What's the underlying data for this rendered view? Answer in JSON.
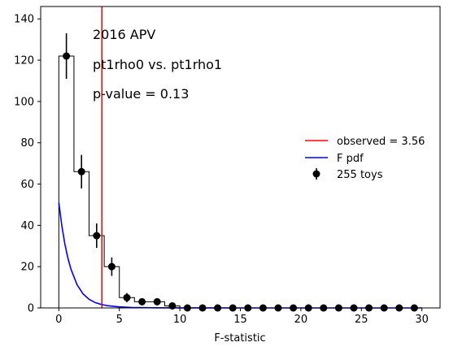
{
  "chart_data": {
    "type": "histogram",
    "xlabel": "F-statistic",
    "ylabel": "",
    "xlim": [
      -1.5,
      31.5
    ],
    "ylim": [
      0,
      146
    ],
    "xticks": [
      0,
      5,
      10,
      15,
      20,
      25,
      30
    ],
    "yticks": [
      0,
      20,
      40,
      60,
      80,
      100,
      120,
      140
    ],
    "annotations": [
      "2016 APV",
      "pt1rho0 vs. pt1rho1",
      "p-value = 0.13"
    ],
    "bin_edges": [
      0,
      1.25,
      2.5,
      3.75,
      5.0,
      6.25,
      7.5,
      8.75,
      10.0,
      11.25,
      12.5,
      13.75,
      15.0,
      16.25,
      17.5,
      18.75,
      20.0,
      21.25,
      22.5,
      23.75,
      25.0,
      26.25,
      27.5,
      28.75,
      30.0
    ],
    "series": [
      {
        "name": "255 toys",
        "kind": "errorbar",
        "color": "#000000",
        "x": [
          0.625,
          1.875,
          3.125,
          4.375,
          5.625,
          6.875,
          8.125,
          9.375,
          10.625,
          11.875,
          13.125,
          14.375,
          15.625,
          16.875,
          18.125,
          19.375,
          20.625,
          21.875,
          23.125,
          24.375,
          25.625,
          26.875,
          28.125,
          29.375
        ],
        "values": [
          122,
          66,
          35,
          20,
          5,
          3,
          3,
          1,
          0,
          0,
          0,
          0,
          0,
          0,
          0,
          0,
          0,
          0,
          0,
          0,
          0,
          0,
          0,
          0
        ]
      },
      {
        "name": "F pdf",
        "kind": "line",
        "color": "#0000ff",
        "x": [
          0,
          0.25,
          0.5,
          0.75,
          1.0,
          1.5,
          2.0,
          2.5,
          3.0,
          3.5,
          4.0,
          5.0,
          6.0,
          8.0,
          10.0,
          15.0,
          20.0,
          25.0,
          30.0
        ],
        "values": [
          51,
          39.7,
          30.9,
          24.1,
          18.8,
          11.3,
          6.8,
          4.2,
          2.6,
          1.7,
          1.1,
          0.5,
          0.25,
          0.07,
          0.02,
          0,
          0,
          0,
          0
        ]
      }
    ],
    "observed": {
      "name": "observed = 3.56",
      "value": 3.56,
      "color": "#ff0000"
    },
    "legend_position": "center-right"
  }
}
